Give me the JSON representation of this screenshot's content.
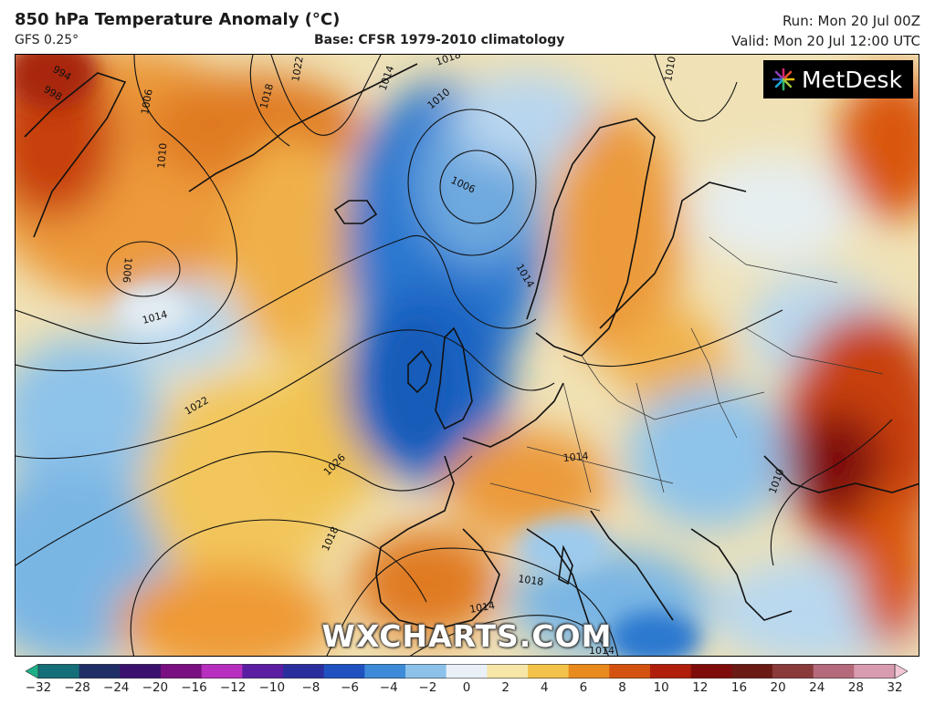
{
  "header": {
    "title": "850 hPa Temperature Anomaly (°C)",
    "model": "GFS 0.25°",
    "base": "Base: CFSR 1979-2010 climatology",
    "run": "Run: Mon 20 Jul 00Z",
    "valid": "Valid: Mon 20 Jul 12:00 UTC"
  },
  "logo": {
    "text": "MetDesk"
  },
  "watermark": "WXCHARTS.COM",
  "isobar_labels": [
    "994",
    "998",
    "1006",
    "1010",
    "1022",
    "1018",
    "1014",
    "1018",
    "1010",
    "1006",
    "1006",
    "1014",
    "1014",
    "1022",
    "1026",
    "1018",
    "1018",
    "1014",
    "1014",
    "1014",
    "1010",
    "1010"
  ],
  "colorbar": {
    "ticks": [
      "−32",
      "−28",
      "−24",
      "−20",
      "−16",
      "−12",
      "−10",
      "−8",
      "−6",
      "−4",
      "−2",
      "0",
      "2",
      "4",
      "6",
      "8",
      "10",
      "12",
      "16",
      "20",
      "24",
      "28",
      "32"
    ],
    "colors": [
      "#1fb08a",
      "#156f78",
      "#1f2e66",
      "#3b1170",
      "#7a0f82",
      "#b82fbf",
      "#5b1ea3",
      "#2b2f9e",
      "#1f52c0",
      "#3d8bd8",
      "#8cc2ea",
      "#e9f1f7",
      "#f6e7a8",
      "#f2c24a",
      "#e98a1c",
      "#d4520f",
      "#b01e0c",
      "#7e0c0a",
      "#6b1a14",
      "#8a3a3a",
      "#b46a7a",
      "#d99bb0",
      "#f2c7d6"
    ]
  },
  "colors": {
    "cold_core": "#1f6fc8",
    "warm_core": "#d9560f",
    "hot_core": "#8a1a08",
    "neutral": "#eef2ee"
  }
}
